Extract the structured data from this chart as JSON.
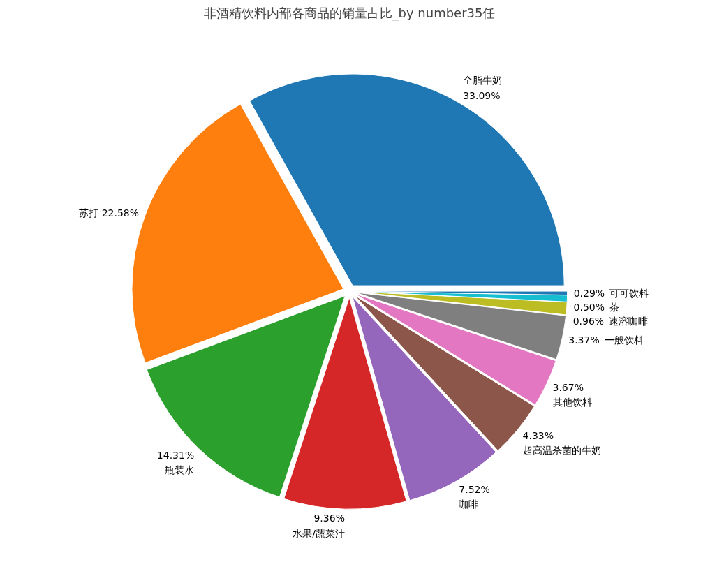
{
  "chart_data": {
    "type": "pie",
    "title": "非酒精饮料内部各商品的销量占比_by number35任",
    "categories": [
      "全脂牛奶",
      "苏打",
      "瓶装水",
      "水果/蔬菜汁",
      "咖啡",
      "超高温杀菌的牛奶",
      "其他饮料",
      "一般饮料",
      "速溶咖啡",
      "茶",
      "可可饮料"
    ],
    "values": [
      33.09,
      22.58,
      14.31,
      9.36,
      7.52,
      4.33,
      3.67,
      3.37,
      0.96,
      0.5,
      0.29
    ],
    "value_labels": [
      "33.09%",
      "22.58%",
      "14.31%",
      "9.36%",
      "7.52%",
      "4.33%",
      "3.67%",
      "3.37%",
      "0.96%",
      "0.50%",
      "0.29%"
    ],
    "colors": [
      "#1f77b4",
      "#ff7f0e",
      "#2ca02c",
      "#d62728",
      "#9467bd",
      "#8c564b",
      "#e377c2",
      "#7f7f7f",
      "#bcbd22",
      "#17becf",
      "#1f77b4"
    ],
    "legend": false
  }
}
